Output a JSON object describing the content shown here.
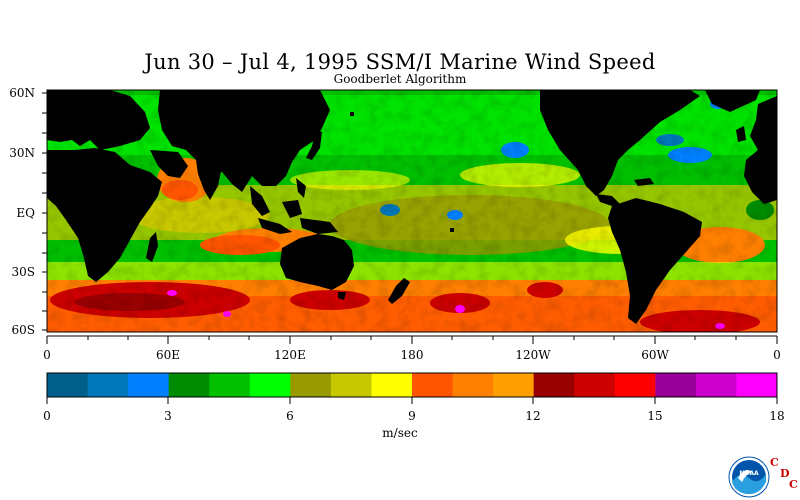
{
  "map": {
    "title": "Jun 30 – Jul 4, 1995 SSM/I Marine Wind Speed",
    "subtitle": "Goodberlet Algorithm",
    "lat_labels": [
      "60N",
      "30N",
      "EQ",
      "30S",
      "60S"
    ],
    "lon_labels": [
      "0",
      "60E",
      "120E",
      "180",
      "120W",
      "60W",
      "0"
    ]
  },
  "colorbar": {
    "colors": [
      "#005f8a",
      "#0077b8",
      "#0080ff",
      "#008c00",
      "#00c000",
      "#00ff00",
      "#999900",
      "#c8c800",
      "#ffff00",
      "#ff5500",
      "#ff7f00",
      "#ffa000",
      "#990000",
      "#cc0000",
      "#ff0000",
      "#990099",
      "#cc00cc",
      "#ff00ff"
    ],
    "tick_labels": [
      "0",
      "3",
      "6",
      "9",
      "12",
      "15",
      "18"
    ],
    "units": "m/sec"
  },
  "logo": {
    "noaa": "NOAA",
    "cdc": [
      "C",
      "D",
      "C"
    ]
  },
  "colors": {
    "land": "#000000",
    "ocean_base": "#00c000"
  }
}
